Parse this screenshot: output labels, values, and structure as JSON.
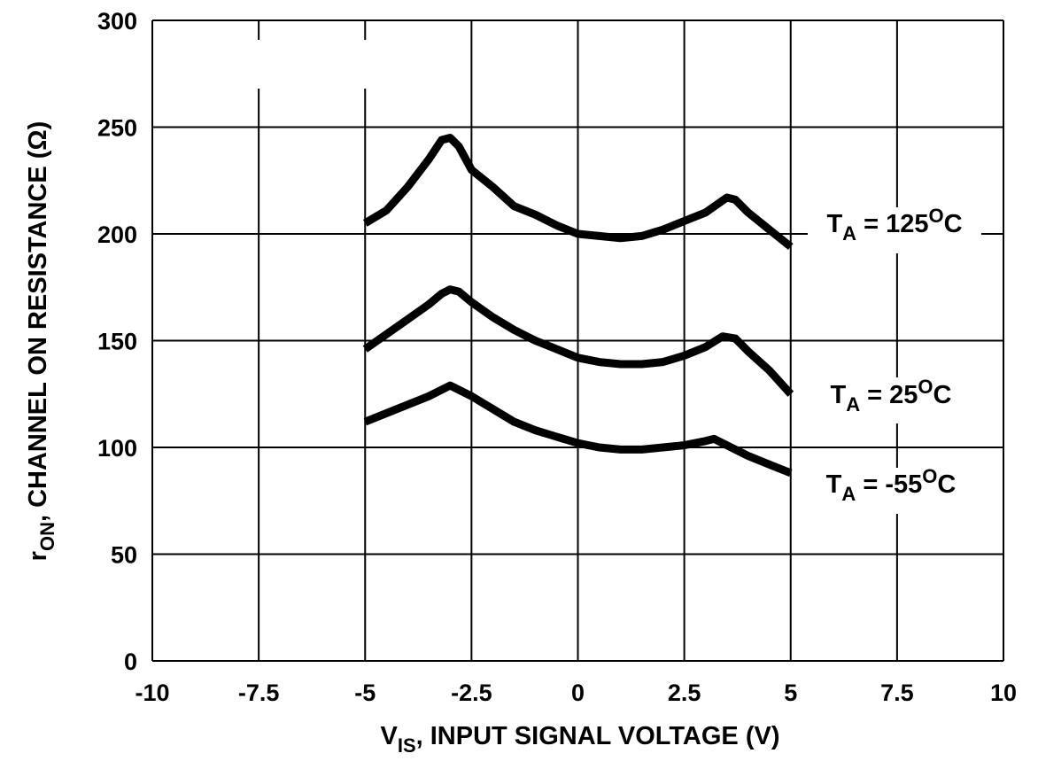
{
  "chart_data": {
    "type": "line",
    "title": "",
    "xlabel": {
      "main": "V",
      "sub": "IS",
      "rest": ", INPUT SIGNAL VOLTAGE (V)"
    },
    "ylabel": {
      "main": "r",
      "sub": "ON",
      "rest": ", CHANNEL ON RESISTANCE (Ω)"
    },
    "xlim": [
      -10,
      10
    ],
    "ylim": [
      0,
      300
    ],
    "xticks": [
      -10,
      -7.5,
      -5,
      -2.5,
      0,
      2.5,
      5,
      7.5,
      10
    ],
    "xtick_labels": [
      "-10",
      "-7.5",
      "-5",
      "-2.5",
      "0",
      "2.5",
      "5",
      "7.5",
      "10"
    ],
    "yticks": [
      0,
      50,
      100,
      150,
      200,
      250,
      300
    ],
    "ytick_labels": [
      "0",
      "50",
      "100",
      "150",
      "200",
      "250",
      "300"
    ],
    "grid": true,
    "series": [
      {
        "name": {
          "prefix": "T",
          "sub": "A",
          "mid": " = 125",
          "sup": "O",
          "suffix": "C"
        },
        "x": [
          -5,
          -4.5,
          -4,
          -3.5,
          -3.2,
          -3,
          -2.8,
          -2.5,
          -2,
          -1.5,
          -1,
          -0.5,
          0,
          0.5,
          1,
          1.5,
          2,
          2.5,
          3,
          3.5,
          3.7,
          4,
          4.5,
          5
        ],
        "y": [
          205,
          211,
          222,
          235,
          244,
          245,
          241,
          230,
          222,
          213,
          209,
          204,
          200,
          199,
          198,
          199,
          202,
          206,
          210,
          217,
          216,
          210,
          202,
          194
        ]
      },
      {
        "name": {
          "prefix": "T",
          "sub": "A",
          "mid": " = 25",
          "sup": "O",
          "suffix": "C"
        },
        "x": [
          -5,
          -4.5,
          -4,
          -3.5,
          -3.2,
          -3,
          -2.8,
          -2.5,
          -2,
          -1.5,
          -1,
          -0.5,
          0,
          0.5,
          1,
          1.5,
          2,
          2.5,
          3,
          3.4,
          3.7,
          4,
          4.5,
          5
        ],
        "y": [
          146,
          153,
          160,
          167,
          172,
          174,
          173,
          168,
          161,
          155,
          150,
          146,
          142,
          140,
          139,
          139,
          140,
          143,
          147,
          152,
          151,
          145,
          136,
          125
        ]
      },
      {
        "name": {
          "prefix": "T",
          "sub": "A",
          "mid": " = -55",
          "sup": "O",
          "suffix": "C"
        },
        "x": [
          -5,
          -4.5,
          -4,
          -3.5,
          -3,
          -2.5,
          -2,
          -1.5,
          -1,
          -0.5,
          0,
          0.5,
          1,
          1.5,
          2,
          2.5,
          3,
          3.2,
          3.5,
          4,
          4.5,
          5
        ],
        "y": [
          112,
          116,
          120,
          124,
          129,
          124,
          118,
          112,
          108,
          105,
          102,
          100,
          99,
          99,
          100,
          101,
          103,
          104,
          101,
          96,
          92,
          88
        ]
      }
    ]
  }
}
